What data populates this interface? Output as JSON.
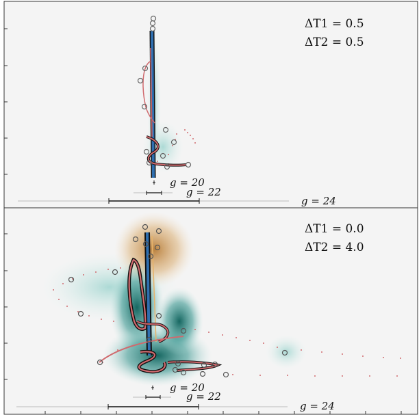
{
  "chart_data": [
    {
      "type": "scatter",
      "title": "",
      "annotations": [
        "ΔT1 = 0.5",
        "ΔT2 = 0.5"
      ],
      "ticks": {
        "x": [],
        "y": []
      },
      "grid": false,
      "trajectory_colors": {
        "trace": "#d06a6e",
        "outline": "#111111",
        "core": "#2f6fb0",
        "marker": "#666666"
      },
      "colormap": {
        "positive": "#0b5f59",
        "negative": "#b3742a",
        "background": "#f4f4f4"
      },
      "scale_bars": [
        {
          "label": "g = 20"
        },
        {
          "label": "g = 22"
        },
        {
          "label": "g = 24"
        }
      ]
    },
    {
      "type": "scatter",
      "title": "",
      "annotations": [
        "ΔT1 = 0.0",
        "ΔT2 = 4.0"
      ],
      "ticks": {
        "x": [],
        "y": []
      },
      "grid": false,
      "trajectory_colors": {
        "trace": "#d06a6e",
        "outline": "#111111",
        "core": "#2f6fb0",
        "marker": "#666666"
      },
      "colormap": {
        "positive": "#0b5f59",
        "negative": "#b3742a",
        "background": "#f4f4f4"
      },
      "scale_bars": [
        {
          "label": "g = 20"
        },
        {
          "label": "g = 22"
        },
        {
          "label": "g = 24"
        }
      ]
    }
  ]
}
